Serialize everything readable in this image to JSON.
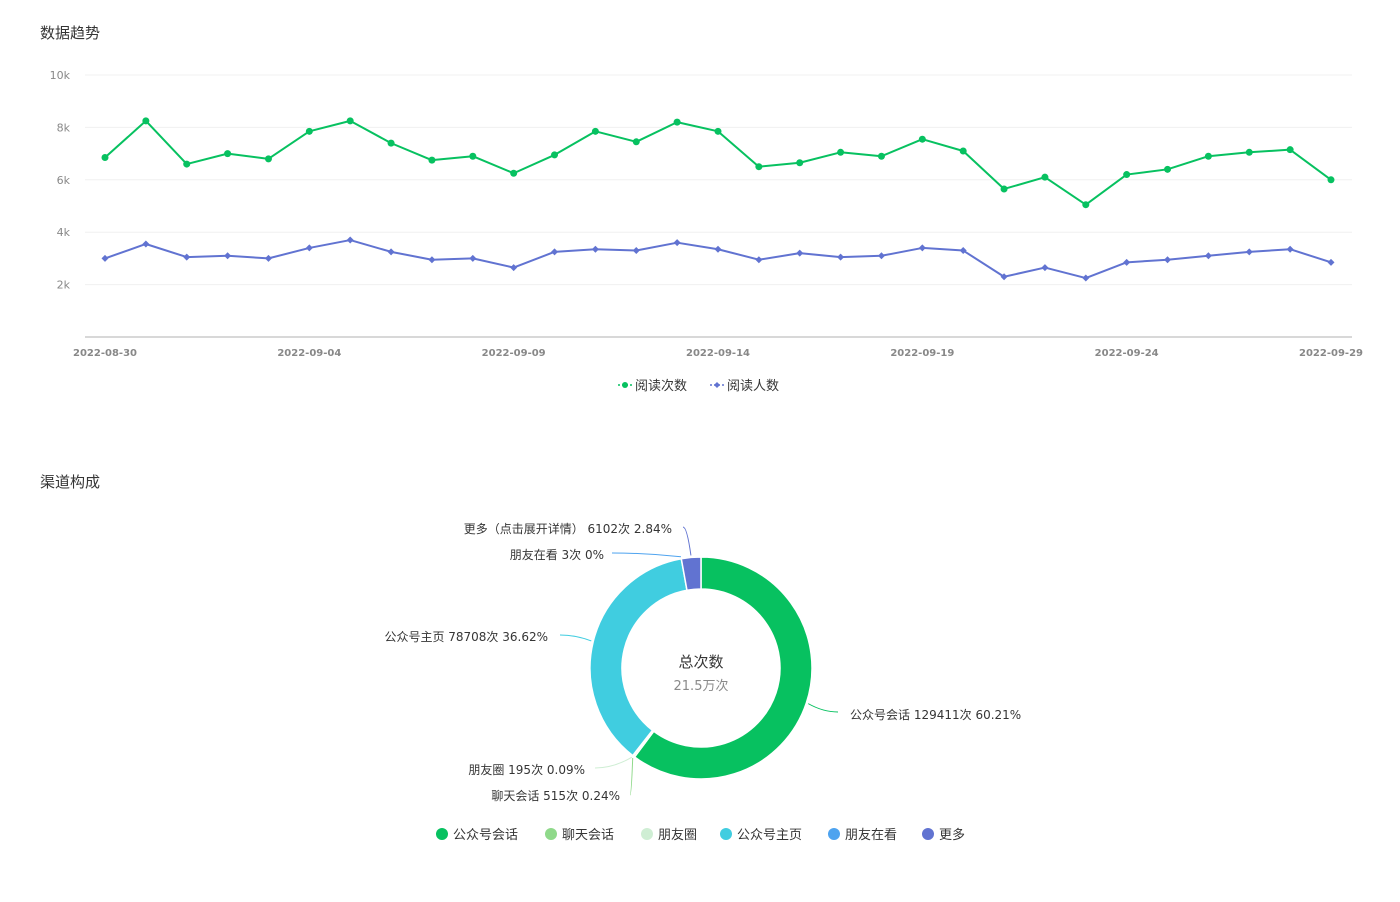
{
  "sections": {
    "trend_title": "数据趋势",
    "channel_title": "渠道构成"
  },
  "colors": {
    "read_count": "#07c160",
    "reader_count": "#6173d1",
    "gridline": "#f0f0f0",
    "axis": "#cccccc"
  },
  "chart_data": [
    {
      "type": "line",
      "title": "数据趋势",
      "x_tick_labels": [
        "2022-08-30",
        "2022-09-04",
        "2022-09-09",
        "2022-09-14",
        "2022-09-19",
        "2022-09-24",
        "2022-09-29"
      ],
      "y_tick_labels": [
        "2k",
        "4k",
        "6k",
        "8k",
        "10k"
      ],
      "y_ticks": [
        2000,
        4000,
        6000,
        8000,
        10000
      ],
      "ylim": [
        0,
        10000
      ],
      "x": [
        "2022-08-30",
        "2022-08-31",
        "2022-09-01",
        "2022-09-02",
        "2022-09-03",
        "2022-09-04",
        "2022-09-05",
        "2022-09-06",
        "2022-09-07",
        "2022-09-08",
        "2022-09-09",
        "2022-09-10",
        "2022-09-11",
        "2022-09-12",
        "2022-09-13",
        "2022-09-14",
        "2022-09-15",
        "2022-09-16",
        "2022-09-17",
        "2022-09-18",
        "2022-09-19",
        "2022-09-20",
        "2022-09-21",
        "2022-09-22",
        "2022-09-23",
        "2022-09-24",
        "2022-09-25",
        "2022-09-26",
        "2022-09-27",
        "2022-09-28",
        "2022-09-29"
      ],
      "series": [
        {
          "name": "阅读次数",
          "color": "#07c160",
          "marker": "circle",
          "values": [
            6850,
            8250,
            6600,
            7000,
            6800,
            7850,
            8250,
            7400,
            6750,
            6900,
            6250,
            6950,
            7850,
            7450,
            8200,
            7850,
            6500,
            6650,
            7050,
            6900,
            7550,
            7100,
            5650,
            6100,
            5050,
            6200,
            6400,
            6900,
            7050,
            7150,
            6000
          ]
        },
        {
          "name": "阅读人数",
          "color": "#6173d1",
          "marker": "diamond",
          "values": [
            3000,
            3550,
            3050,
            3100,
            3000,
            3400,
            3700,
            3250,
            2950,
            3000,
            2650,
            3250,
            3350,
            3300,
            3600,
            3350,
            2950,
            3200,
            3050,
            3100,
            3400,
            3300,
            2300,
            2650,
            2250,
            2850,
            2950,
            3100,
            3250,
            3350,
            2850
          ]
        }
      ],
      "legend": {
        "position": "bottom-center"
      },
      "grid": true
    },
    {
      "type": "pie",
      "subtype": "donut",
      "title": "渠道构成",
      "center_title": "总次数",
      "center_value": "21.5万次",
      "slices": [
        {
          "name": "公众号会话",
          "value": 129411,
          "percent": 60.21,
          "label": "公众号会话 129411次 60.21%",
          "color": "#07c160"
        },
        {
          "name": "聊天会话",
          "value": 515,
          "percent": 0.24,
          "label": "聊天会话 515次 0.24%",
          "color": "#8fd98a"
        },
        {
          "name": "朋友圈",
          "value": 195,
          "percent": 0.09,
          "label": "朋友圈 195次 0.09%",
          "color": "#cfeed4"
        },
        {
          "name": "公众号主页",
          "value": 78708,
          "percent": 36.62,
          "label": "公众号主页 78708次 36.62%",
          "color": "#40cde0"
        },
        {
          "name": "朋友在看",
          "value": 3,
          "percent": 0,
          "label": "朋友在看 3次 0%",
          "color": "#4ea3ef"
        },
        {
          "name": "更多",
          "value": 6102,
          "percent": 2.84,
          "label": "更多（点击展开详情） 6102次 2.84%",
          "color": "#6173d1"
        }
      ],
      "legend": {
        "position": "bottom-center"
      }
    }
  ]
}
